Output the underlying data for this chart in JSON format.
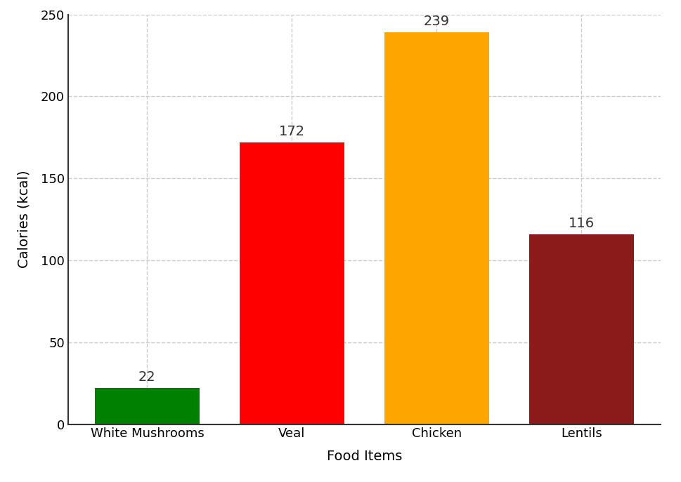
{
  "categories": [
    "White Mushrooms",
    "Veal",
    "Chicken",
    "Lentils"
  ],
  "values": [
    22,
    172,
    239,
    116
  ],
  "bar_colors": [
    "#008000",
    "#ff0000",
    "#ffa500",
    "#8b1a1a"
  ],
  "xlabel": "Food Items",
  "ylabel": "Calories (kcal)",
  "ylim": [
    0,
    250
  ],
  "yticks": [
    0,
    50,
    100,
    150,
    200,
    250
  ],
  "background_color": "#ffffff",
  "grid_color": "#cccccc",
  "label_fontsize": 14,
  "tick_fontsize": 13,
  "value_fontsize": 14,
  "bar_width": 0.72
}
